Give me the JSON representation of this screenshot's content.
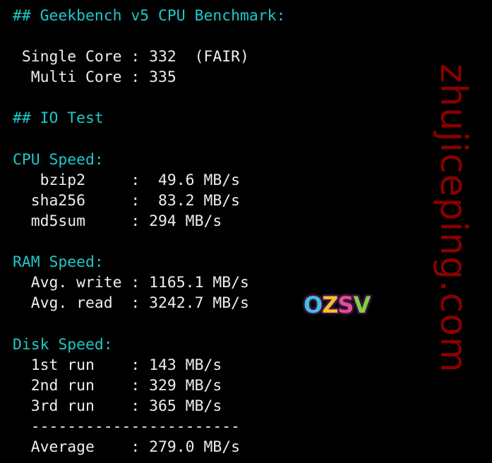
{
  "terminal": {
    "lines": [
      {
        "text": "## Geekbench v5 CPU Benchmark:",
        "color": "cyan"
      },
      {
        "text": "",
        "color": "white"
      },
      {
        "text": " Single Core : 332  (FAIR)",
        "color": "white"
      },
      {
        "text": "  Multi Core : 335",
        "color": "white"
      },
      {
        "text": "",
        "color": "white"
      },
      {
        "text": "## IO Test",
        "color": "cyan"
      },
      {
        "text": "",
        "color": "white"
      },
      {
        "text": "CPU Speed:",
        "color": "cyan"
      },
      {
        "text": "   bzip2     :  49.6 MB/s",
        "color": "white"
      },
      {
        "text": "  sha256     :  83.2 MB/s",
        "color": "white"
      },
      {
        "text": "  md5sum     : 294 MB/s",
        "color": "white"
      },
      {
        "text": "",
        "color": "white"
      },
      {
        "text": "RAM Speed:",
        "color": "cyan"
      },
      {
        "text": "  Avg. write : 1165.1 MB/s",
        "color": "white"
      },
      {
        "text": "  Avg. read  : 3242.7 MB/s",
        "color": "white"
      },
      {
        "text": "",
        "color": "white"
      },
      {
        "text": "Disk Speed:",
        "color": "cyan"
      },
      {
        "text": "  1st run    : 143 MB/s",
        "color": "white"
      },
      {
        "text": "  2nd run    : 329 MB/s",
        "color": "white"
      },
      {
        "text": "  3rd run    : 365 MB/s",
        "color": "white"
      },
      {
        "text": "  -----------------------",
        "color": "white"
      },
      {
        "text": "  Average    : 279.0 MB/s",
        "color": "white"
      }
    ]
  },
  "watermark": {
    "text": "zhujiceping.com",
    "color": "#8a0000"
  },
  "logo": {
    "letters": [
      "O",
      "Z",
      "S",
      "V"
    ],
    "colors": [
      "#3fc0e0",
      "#f0c030",
      "#e05090",
      "#80d040"
    ]
  }
}
